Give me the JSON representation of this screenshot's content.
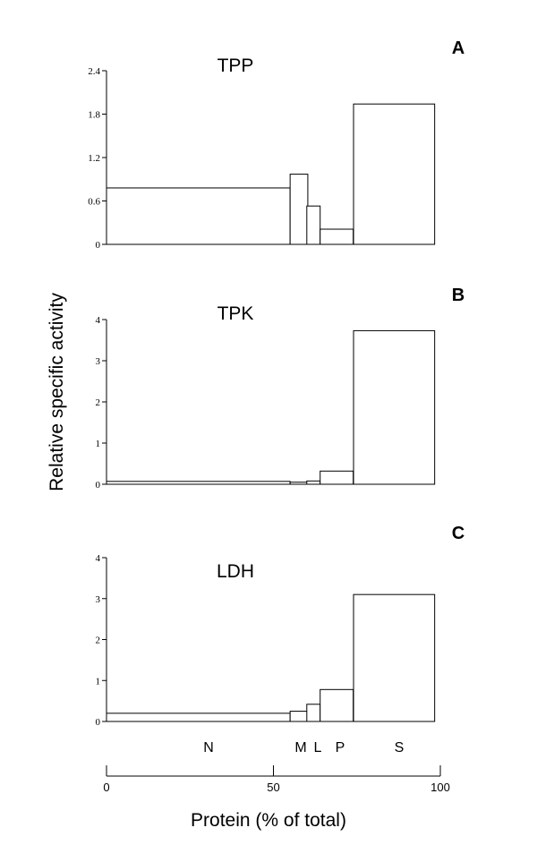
{
  "ylabel": "Relative specific activity",
  "xlabel": "Protein (% of total)",
  "fraction_labels": [
    "N",
    "M",
    "L",
    "P",
    "S"
  ],
  "x_axis": {
    "ticks": [
      0,
      50,
      100
    ],
    "tick_labels": [
      "0",
      "50",
      "100"
    ],
    "xlim": [
      0,
      100
    ]
  },
  "chart_data": [
    {
      "type": "bar",
      "letter": "A",
      "title": "TPP",
      "ylim": [
        0,
        2.4
      ],
      "yticks": [
        0,
        0.6,
        1.2,
        1.8,
        2.4
      ],
      "ytick_labels": [
        "0",
        "0.6",
        "1.2",
        "1.8",
        "2.4"
      ],
      "categories": [
        "N",
        "M",
        "L",
        "P",
        "S"
      ],
      "protein_start": [
        0,
        55,
        60,
        64,
        74
      ],
      "protein_width": [
        55,
        5.3,
        4,
        9.9,
        24.3
      ],
      "values": [
        0.78,
        0.97,
        0.53,
        0.21,
        1.94
      ]
    },
    {
      "type": "bar",
      "letter": "B",
      "title": "TPK",
      "ylim": [
        0,
        4
      ],
      "yticks": [
        0,
        1,
        2,
        3,
        4
      ],
      "ytick_labels": [
        "0",
        "1",
        "2",
        "3",
        "4"
      ],
      "categories": [
        "N",
        "M",
        "L",
        "P",
        "S"
      ],
      "protein_start": [
        0,
        55,
        60,
        64,
        74
      ],
      "protein_width": [
        55,
        5.3,
        4,
        9.9,
        24.3
      ],
      "values": [
        0.07,
        0.05,
        0.08,
        0.32,
        3.73
      ]
    },
    {
      "type": "bar",
      "letter": "C",
      "title": "LDH",
      "ylim": [
        0,
        4
      ],
      "yticks": [
        0,
        1,
        2,
        3,
        4
      ],
      "ytick_labels": [
        "0",
        "1",
        "2",
        "3",
        "4"
      ],
      "categories": [
        "N",
        "M",
        "L",
        "P",
        "S"
      ],
      "protein_start": [
        0,
        55,
        60,
        64,
        74
      ],
      "protein_width": [
        55,
        5.3,
        4,
        9.9,
        24.3
      ],
      "values": [
        0.2,
        0.25,
        0.42,
        0.78,
        3.1
      ]
    }
  ]
}
